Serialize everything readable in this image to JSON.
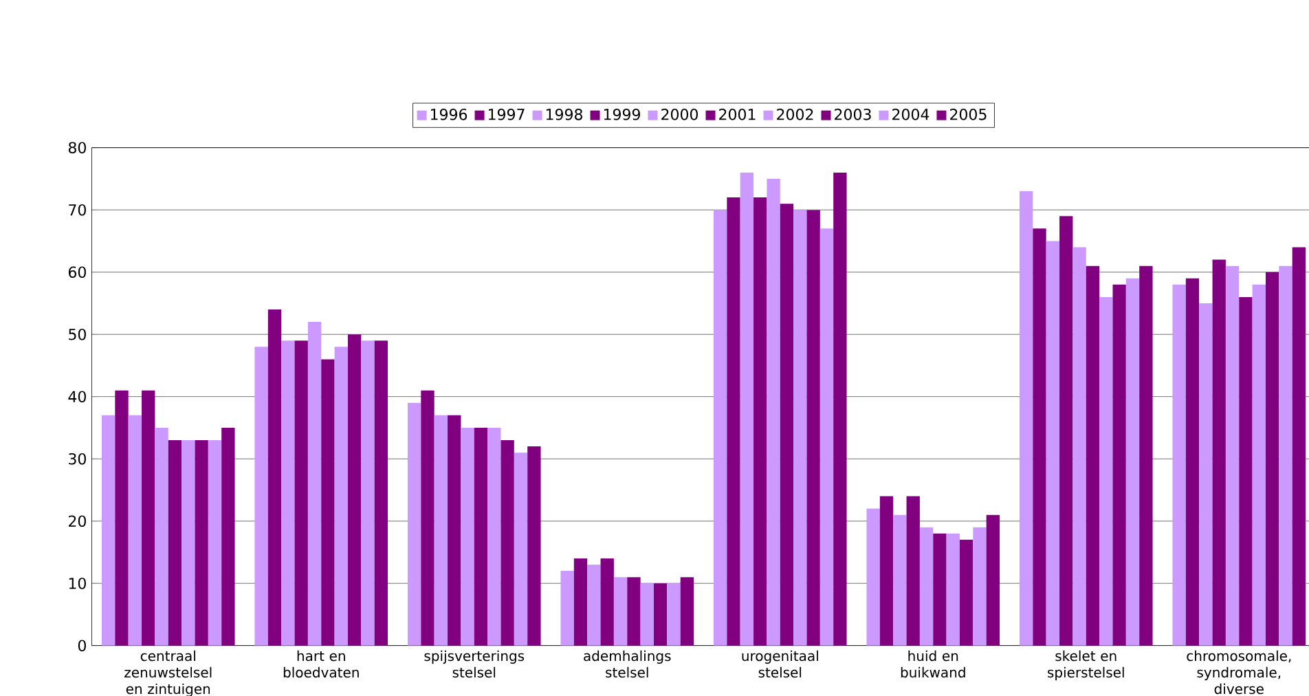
{
  "chart_data": {
    "type": "bar",
    "categories": [
      "centraal zenuwstelsel en zintuigen",
      "hart en bloedvaten",
      "spijsverterings stelsel",
      "ademhalings stelsel",
      "urogenitaal stelsel",
      "huid en buikwand",
      "skelet en spierstelsel",
      "chromosomale, syndromale, diverse"
    ],
    "series": [
      {
        "name": "1996",
        "color": "#cc99ff",
        "values": [
          37,
          48,
          39,
          12,
          70,
          22,
          73,
          58
        ]
      },
      {
        "name": "1997",
        "color": "#800080",
        "values": [
          41,
          54,
          41,
          14,
          72,
          24,
          67,
          59
        ]
      },
      {
        "name": "1998",
        "color": "#cc99ff",
        "values": [
          37,
          49,
          37,
          13,
          76,
          21,
          65,
          55
        ]
      },
      {
        "name": "1999",
        "color": "#800080",
        "values": [
          41,
          49,
          37,
          14,
          72,
          24,
          69,
          62
        ]
      },
      {
        "name": "2000",
        "color": "#cc99ff",
        "values": [
          35,
          52,
          35,
          11,
          75,
          19,
          64,
          61
        ]
      },
      {
        "name": "2001",
        "color": "#800080",
        "values": [
          33,
          46,
          35,
          11,
          71,
          18,
          61,
          56
        ]
      },
      {
        "name": "2002",
        "color": "#cc99ff",
        "values": [
          33,
          48,
          35,
          10,
          70,
          18,
          56,
          58
        ]
      },
      {
        "name": "2003",
        "color": "#800080",
        "values": [
          33,
          50,
          33,
          10,
          70,
          17,
          58,
          60
        ]
      },
      {
        "name": "2004",
        "color": "#cc99ff",
        "values": [
          33,
          49,
          31,
          10,
          67,
          19,
          59,
          61
        ]
      },
      {
        "name": "2005",
        "color": "#800080",
        "values": [
          35,
          49,
          32,
          11,
          76,
          21,
          61,
          64
        ]
      }
    ],
    "ylim": [
      0,
      80
    ],
    "yticks": [
      0,
      10,
      20,
      30,
      40,
      50,
      60,
      70,
      80
    ],
    "grid": "y",
    "legend": "top"
  }
}
